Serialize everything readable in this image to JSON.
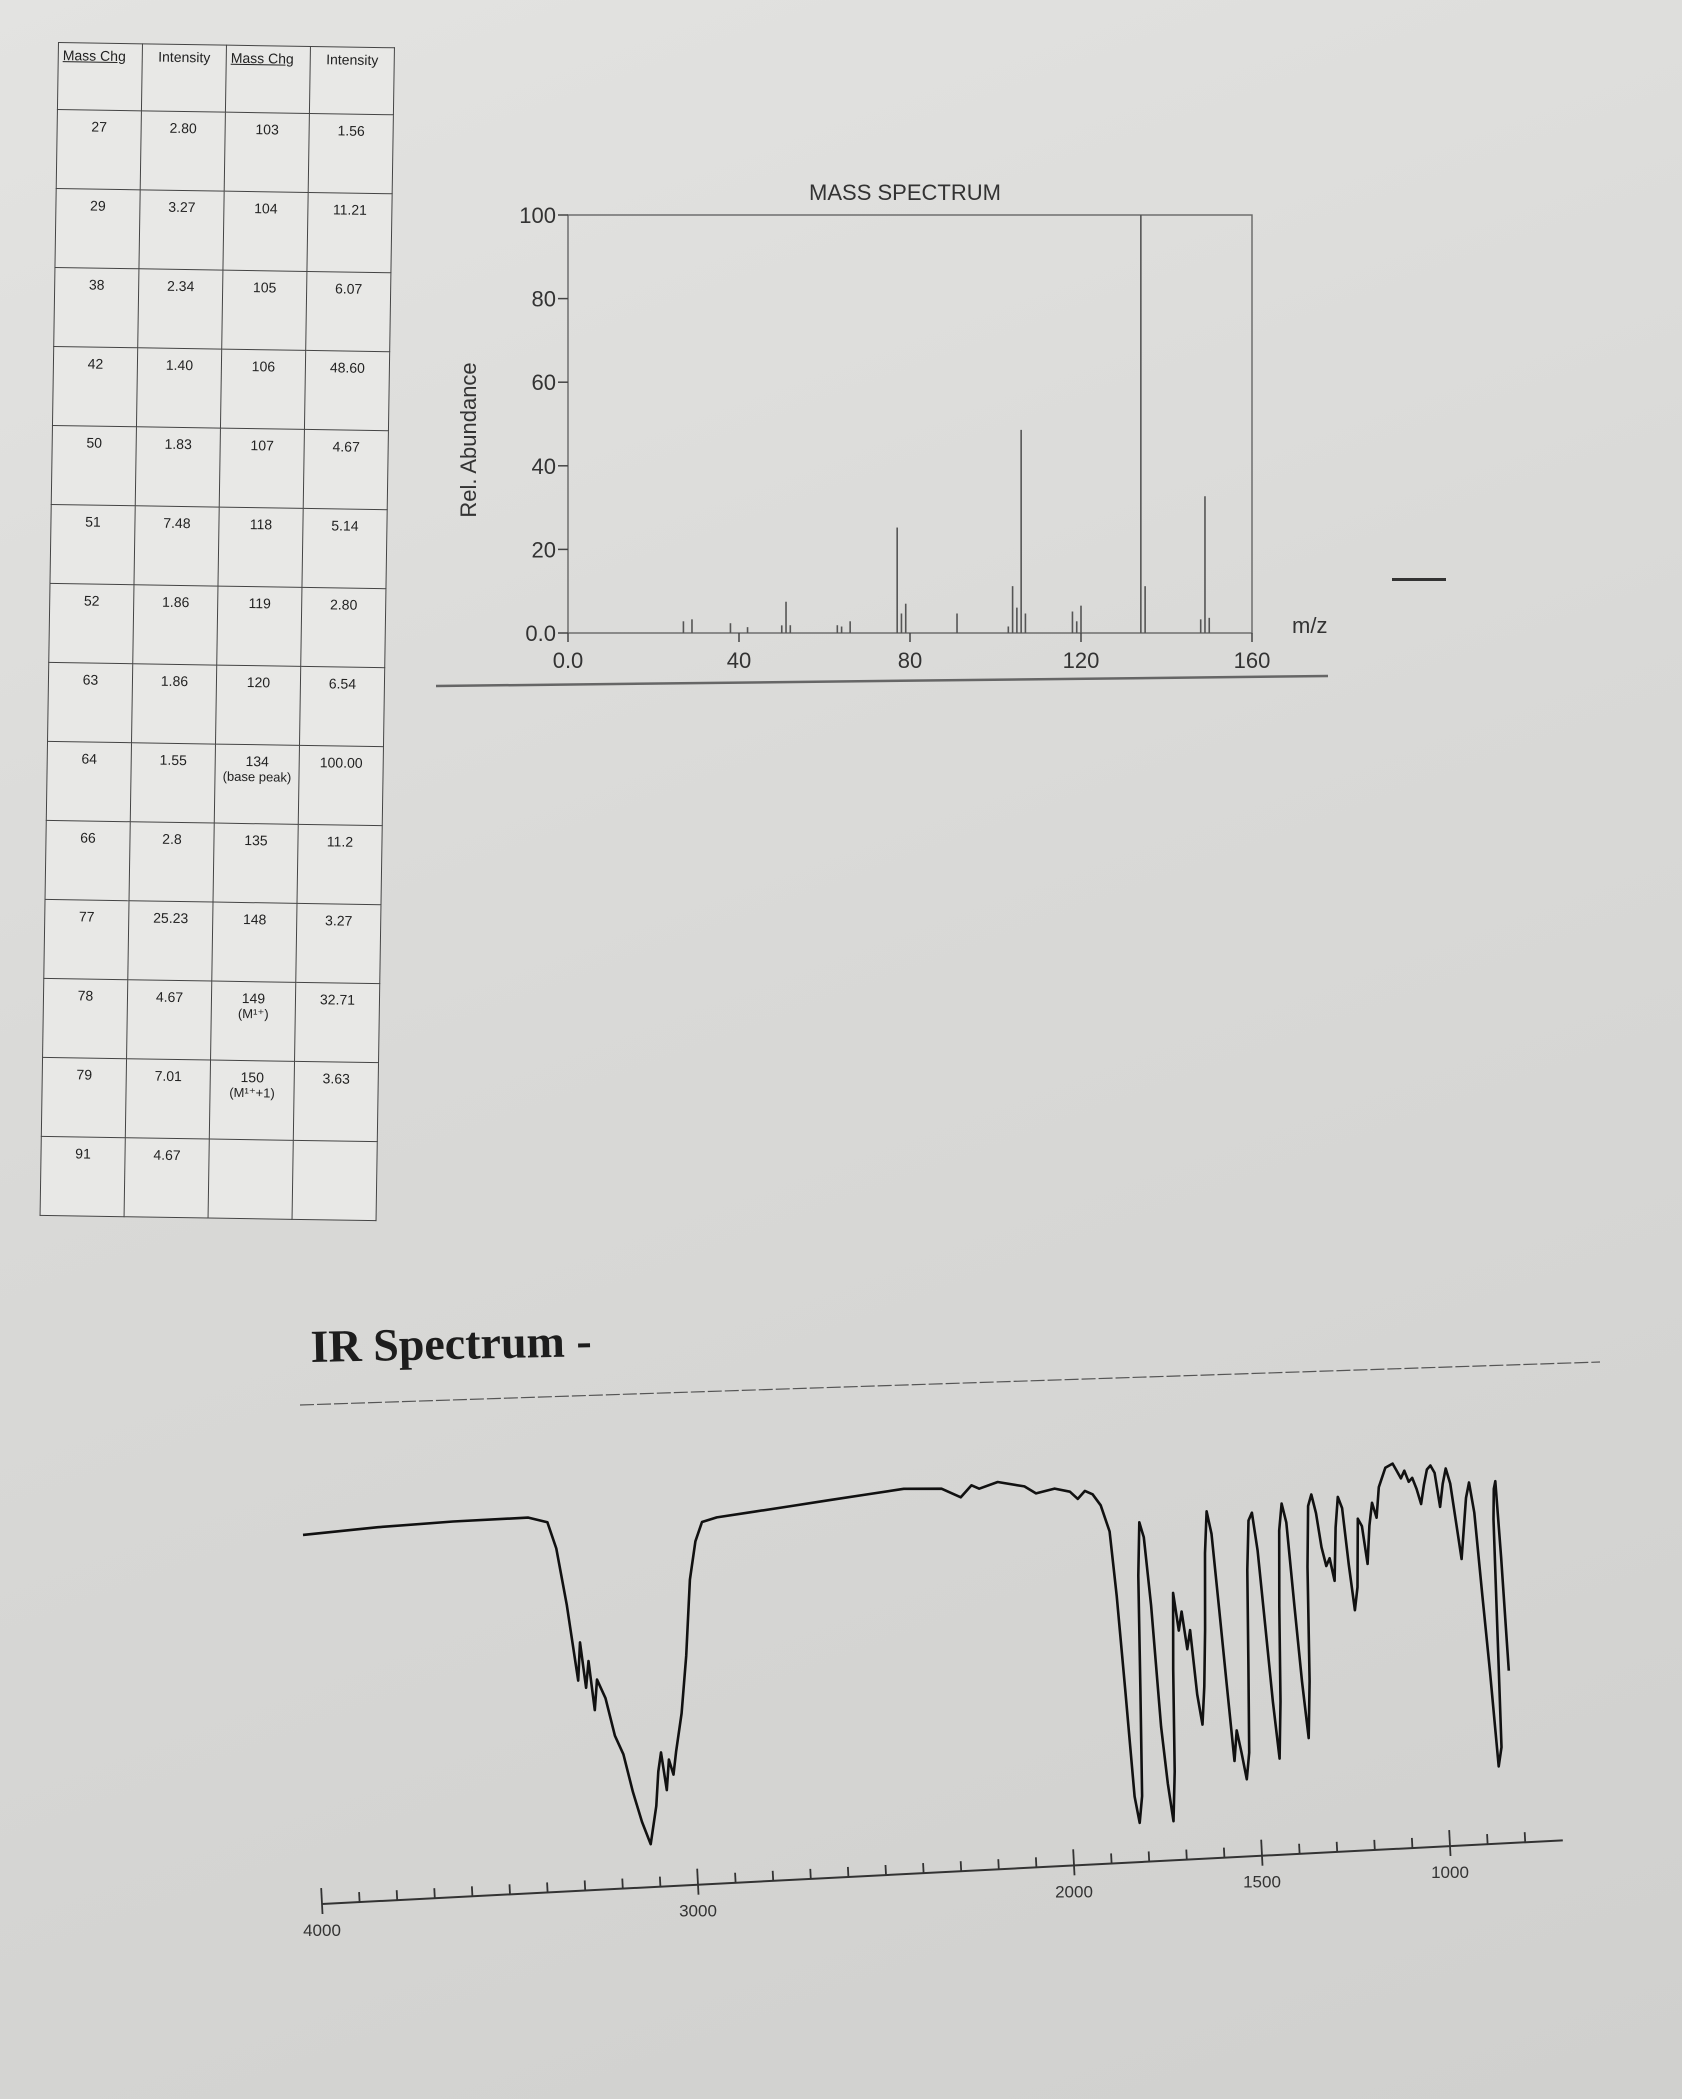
{
  "mass_table": {
    "headers": [
      "Mass Chg",
      "Intensity",
      "Mass Chg",
      "Intensity"
    ],
    "rows": [
      {
        "m1": "27",
        "i1": "2.80",
        "m2": "103",
        "n2": "",
        "i2": "1.56"
      },
      {
        "m1": "29",
        "i1": "3.27",
        "m2": "104",
        "n2": "",
        "i2": "11.21"
      },
      {
        "m1": "38",
        "i1": "2.34",
        "m2": "105",
        "n2": "",
        "i2": "6.07"
      },
      {
        "m1": "42",
        "i1": "1.40",
        "m2": "106",
        "n2": "",
        "i2": "48.60"
      },
      {
        "m1": "50",
        "i1": "1.83",
        "m2": "107",
        "n2": "",
        "i2": "4.67"
      },
      {
        "m1": "51",
        "i1": "7.48",
        "m2": "118",
        "n2": "",
        "i2": "5.14"
      },
      {
        "m1": "52",
        "i1": "1.86",
        "m2": "119",
        "n2": "",
        "i2": "2.80"
      },
      {
        "m1": "63",
        "i1": "1.86",
        "m2": "120",
        "n2": "",
        "i2": "6.54"
      },
      {
        "m1": "64",
        "i1": "1.55",
        "m2": "134",
        "n2": "(base peak)",
        "i2": "100.00"
      },
      {
        "m1": "66",
        "i1": "2.8",
        "m2": "135",
        "n2": "",
        "i2": "11.2"
      },
      {
        "m1": "77",
        "i1": "25.23",
        "m2": "148",
        "n2": "",
        "i2": "3.27"
      },
      {
        "m1": "78",
        "i1": "4.67",
        "m2": "149",
        "n2": "(M¹⁺)",
        "i2": "32.71"
      },
      {
        "m1": "79",
        "i1": "7.01",
        "m2": "150",
        "n2": "(M¹⁺+1)",
        "i2": "3.63"
      },
      {
        "m1": "91",
        "i1": "4.67",
        "m2": "",
        "n2": "",
        "i2": ""
      }
    ]
  },
  "chart_data": [
    {
      "type": "bar",
      "title": "MASS SPECTRUM",
      "xlabel": "m/z",
      "ylabel": "Rel. Abundance",
      "xlim": [
        0,
        160
      ],
      "ylim": [
        0,
        100
      ],
      "xticks": [
        0,
        40,
        80,
        120,
        160
      ],
      "xtick_labels": [
        "0.0",
        "40",
        "80",
        "120",
        "160"
      ],
      "yticks": [
        0,
        20,
        40,
        60,
        80,
        100
      ],
      "ytick_labels": [
        "0.0",
        "20",
        "40",
        "60",
        "80",
        "100"
      ],
      "x": [
        27,
        29,
        38,
        42,
        50,
        51,
        52,
        63,
        64,
        66,
        77,
        78,
        79,
        91,
        103,
        104,
        105,
        106,
        107,
        118,
        119,
        120,
        134,
        135,
        148,
        149,
        150
      ],
      "values": [
        2.8,
        3.27,
        2.34,
        1.4,
        1.83,
        7.48,
        1.86,
        1.86,
        1.55,
        2.8,
        25.23,
        4.67,
        7.01,
        4.67,
        1.56,
        11.21,
        6.07,
        48.6,
        4.67,
        5.14,
        2.8,
        6.54,
        100.0,
        11.2,
        3.27,
        32.71,
        3.63
      ]
    },
    {
      "type": "line",
      "title": "IR Spectrum -",
      "xlabel": "",
      "ylabel": "",
      "x_reversed": true,
      "xticks": [
        4000,
        3000,
        2000,
        1500,
        1000
      ],
      "xtick_labels": [
        "4000",
        "3000",
        "2000",
        "1500",
        "1000"
      ],
      "ylim": [
        0,
        100
      ],
      "points": [
        [
          4000,
          92
        ],
        [
          3800,
          93
        ],
        [
          3600,
          93.5
        ],
        [
          3400,
          93.5
        ],
        [
          3350,
          92
        ],
        [
          3330,
          85
        ],
        [
          3310,
          70
        ],
        [
          3300,
          60
        ],
        [
          3290,
          50
        ],
        [
          3280,
          60
        ],
        [
          3270,
          48
        ],
        [
          3260,
          55
        ],
        [
          3250,
          42
        ],
        [
          3240,
          50
        ],
        [
          3220,
          45
        ],
        [
          3200,
          35
        ],
        [
          3180,
          30
        ],
        [
          3160,
          20
        ],
        [
          3140,
          12
        ],
        [
          3120,
          6
        ],
        [
          3100,
          16
        ],
        [
          3090,
          25
        ],
        [
          3080,
          30
        ],
        [
          3070,
          20
        ],
        [
          3060,
          28
        ],
        [
          3050,
          24
        ],
        [
          3040,
          30
        ],
        [
          3020,
          40
        ],
        [
          3000,
          55
        ],
        [
          2980,
          75
        ],
        [
          2960,
          85
        ],
        [
          2940,
          90
        ],
        [
          2900,
          91
        ],
        [
          2800,
          92
        ],
        [
          2700,
          93
        ],
        [
          2600,
          94
        ],
        [
          2500,
          95
        ],
        [
          2400,
          96
        ],
        [
          2300,
          95.5
        ],
        [
          2250,
          93
        ],
        [
          2220,
          96
        ],
        [
          2200,
          95
        ],
        [
          2150,
          96.5
        ],
        [
          2080,
          95
        ],
        [
          2050,
          93
        ],
        [
          2000,
          94
        ],
        [
          1960,
          93
        ],
        [
          1940,
          91
        ],
        [
          1920,
          93
        ],
        [
          1900,
          92
        ],
        [
          1880,
          89
        ],
        [
          1860,
          82
        ],
        [
          1850,
          65
        ],
        [
          1840,
          40
        ],
        [
          1830,
          12
        ],
        [
          1820,
          5
        ],
        [
          1810,
          12
        ],
        [
          1800,
          40
        ],
        [
          1790,
          70
        ],
        [
          1780,
          84
        ],
        [
          1770,
          80
        ],
        [
          1760,
          62
        ],
        [
          1750,
          30
        ],
        [
          1740,
          15
        ],
        [
          1730,
          5
        ],
        [
          1720,
          18
        ],
        [
          1710,
          45
        ],
        [
          1700,
          65
        ],
        [
          1690,
          55
        ],
        [
          1680,
          60
        ],
        [
          1670,
          50
        ],
        [
          1660,
          55
        ],
        [
          1650,
          38
        ],
        [
          1640,
          30
        ],
        [
          1630,
          40
        ],
        [
          1620,
          55
        ],
        [
          1610,
          75
        ],
        [
          1600,
          86
        ],
        [
          1590,
          80
        ],
        [
          1580,
          60
        ],
        [
          1570,
          40
        ],
        [
          1560,
          20
        ],
        [
          1550,
          28
        ],
        [
          1540,
          22
        ],
        [
          1530,
          15
        ],
        [
          1520,
          22
        ],
        [
          1510,
          45
        ],
        [
          1500,
          70
        ],
        [
          1490,
          83
        ],
        [
          1480,
          85
        ],
        [
          1470,
          75
        ],
        [
          1460,
          55
        ],
        [
          1450,
          35
        ],
        [
          1440,
          20
        ],
        [
          1430,
          35
        ],
        [
          1420,
          60
        ],
        [
          1410,
          80
        ],
        [
          1400,
          87
        ],
        [
          1390,
          82
        ],
        [
          1380,
          60
        ],
        [
          1370,
          40
        ],
        [
          1360,
          25
        ],
        [
          1350,
          40
        ],
        [
          1340,
          70
        ],
        [
          1330,
          86
        ],
        [
          1320,
          89
        ],
        [
          1310,
          84
        ],
        [
          1300,
          75
        ],
        [
          1290,
          70
        ],
        [
          1280,
          72
        ],
        [
          1270,
          66
        ],
        [
          1260,
          80
        ],
        [
          1250,
          88
        ],
        [
          1240,
          85
        ],
        [
          1230,
          70
        ],
        [
          1220,
          58
        ],
        [
          1210,
          64
        ],
        [
          1200,
          82
        ],
        [
          1190,
          80
        ],
        [
          1180,
          70
        ],
        [
          1170,
          80
        ],
        [
          1160,
          86
        ],
        [
          1150,
          82
        ],
        [
          1140,
          90
        ],
        [
          1120,
          95
        ],
        [
          1100,
          96
        ],
        [
          1090,
          94
        ],
        [
          1080,
          92
        ],
        [
          1070,
          94
        ],
        [
          1060,
          91
        ],
        [
          1050,
          92
        ],
        [
          1040,
          89
        ],
        [
          1030,
          85
        ],
        [
          1020,
          90
        ],
        [
          1010,
          94
        ],
        [
          1000,
          95
        ],
        [
          990,
          93
        ],
        [
          980,
          84
        ],
        [
          970,
          90
        ],
        [
          960,
          94
        ],
        [
          950,
          90
        ],
        [
          940,
          80
        ],
        [
          930,
          70
        ],
        [
          920,
          78
        ],
        [
          910,
          86
        ],
        [
          900,
          90
        ],
        [
          890,
          82
        ],
        [
          880,
          60
        ],
        [
          870,
          40
        ],
        [
          860,
          15
        ],
        [
          850,
          20
        ],
        [
          845,
          50
        ],
        [
          840,
          80
        ],
        [
          835,
          88
        ],
        [
          830,
          90
        ],
        [
          825,
          70
        ],
        [
          820,
          40
        ]
      ]
    }
  ]
}
